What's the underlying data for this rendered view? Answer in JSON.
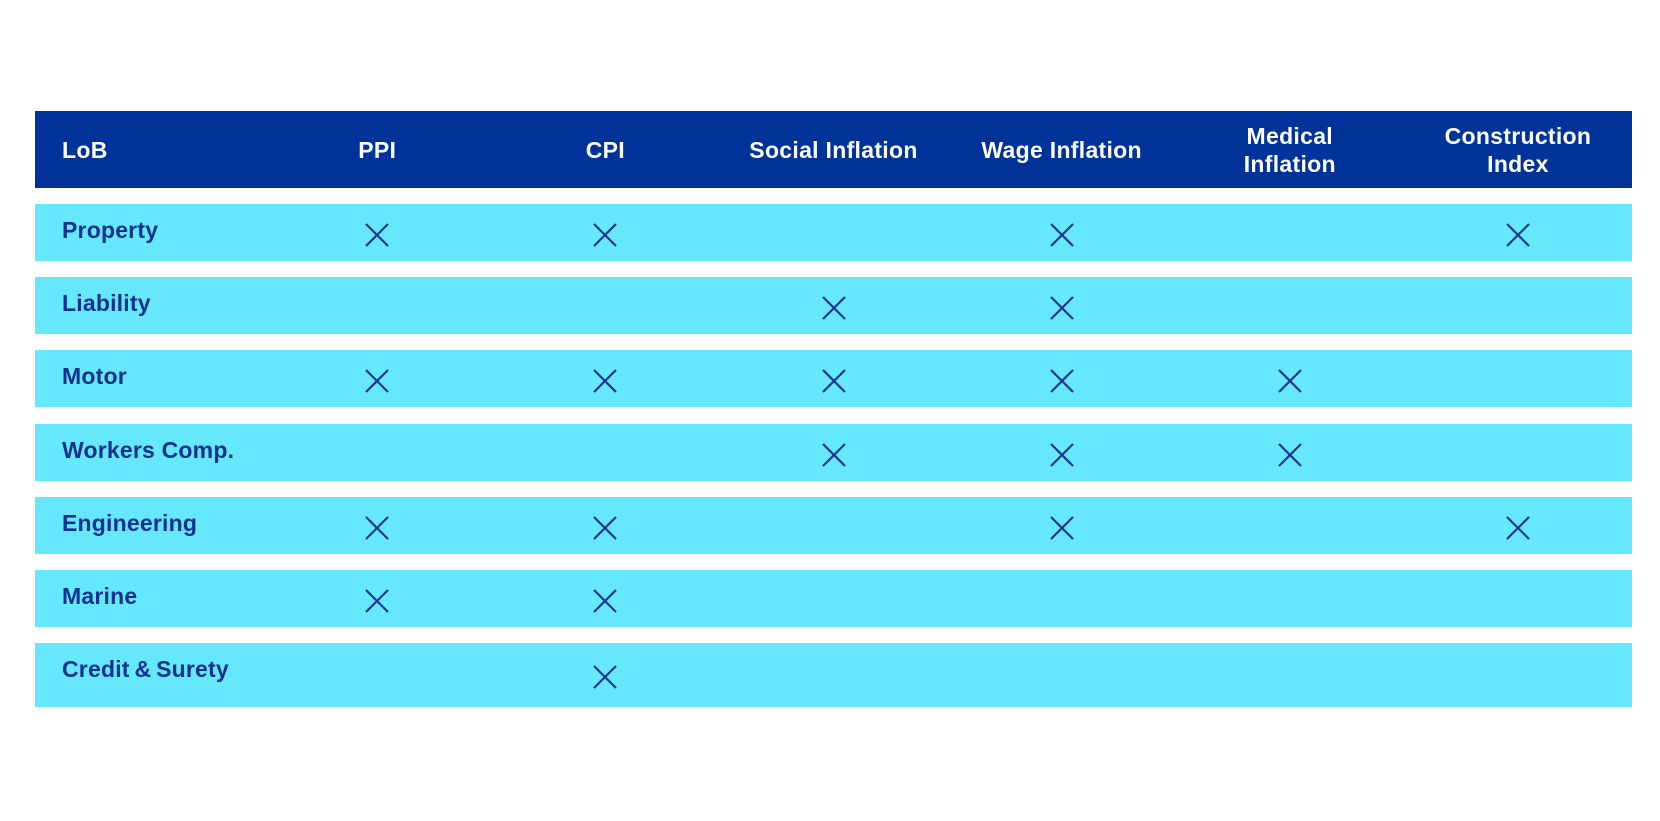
{
  "table": {
    "header": [
      "LoB",
      "PPI",
      "CPI",
      "Social Inflation",
      "Wage Inflation",
      "Medical\nInflation",
      "Construction\nIndex"
    ],
    "rows": [
      {
        "label": "Property",
        "marks": [
          true,
          true,
          false,
          true,
          false,
          true
        ]
      },
      {
        "label": "Liability",
        "marks": [
          false,
          false,
          true,
          true,
          false,
          false
        ]
      },
      {
        "label": "Motor",
        "marks": [
          true,
          true,
          true,
          true,
          true,
          false
        ]
      },
      {
        "label": "Workers Comp.",
        "marks": [
          false,
          false,
          true,
          true,
          true,
          false
        ]
      },
      {
        "label": "Engineering",
        "marks": [
          true,
          true,
          false,
          true,
          false,
          true
        ]
      },
      {
        "label": "Marine",
        "marks": [
          true,
          true,
          false,
          false,
          false,
          false
        ]
      },
      {
        "label": "Credit & Surety",
        "marks": [
          false,
          true,
          false,
          false,
          false,
          false
        ]
      }
    ]
  }
}
